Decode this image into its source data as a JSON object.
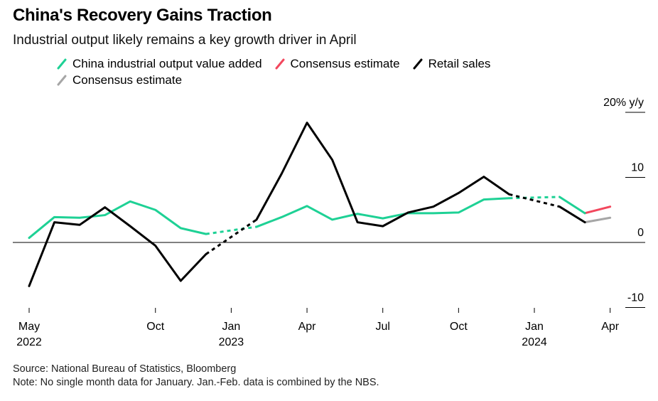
{
  "title": "China's Recovery Gains Traction",
  "subtitle": "Industrial output likely remains a key growth driver in April",
  "footer": {
    "source": "Source: National Bureau of Statistics, Bloomberg",
    "note": "Note: No single month data for January. Jan.-Feb. data is combined by the NBS."
  },
  "colors": {
    "industrial": "#1ed195",
    "industrial_estimate": "#f2475d",
    "retail": "#000000",
    "retail_estimate": "#a6a6a6",
    "axis": "#000000"
  },
  "legend": [
    {
      "label": "China industrial output value added",
      "color": "#1ed195"
    },
    {
      "label": "Consensus estimate",
      "color": "#f2475d"
    },
    {
      "label": "Retail sales",
      "color": "#000000"
    },
    {
      "label": "Consensus estimate",
      "color": "#a6a6a6"
    }
  ],
  "chart_data": {
    "type": "line",
    "ylabel": "20% y/y",
    "ylim": [
      -10,
      20
    ],
    "y_ticks": [
      {
        "value": 20,
        "label": "20% y/y"
      },
      {
        "value": 10,
        "label": "10"
      },
      {
        "value": 0,
        "label": "0"
      },
      {
        "value": -10,
        "label": "-10"
      }
    ],
    "x_ticks": [
      {
        "date": "2022-05",
        "label": "May",
        "year": "2022"
      },
      {
        "date": "2022-10",
        "label": "Oct",
        "year": ""
      },
      {
        "date": "2023-01",
        "label": "Jan",
        "year": "2023"
      },
      {
        "date": "2023-04",
        "label": "Apr",
        "year": ""
      },
      {
        "date": "2023-07",
        "label": "Jul",
        "year": ""
      },
      {
        "date": "2023-10",
        "label": "Oct",
        "year": ""
      },
      {
        "date": "2024-01",
        "label": "Jan",
        "year": "2024"
      },
      {
        "date": "2024-04",
        "label": "Apr",
        "year": ""
      }
    ],
    "series": [
      {
        "name": "China industrial output value added",
        "color": "#1ed195",
        "points": [
          {
            "x": "2022-05",
            "y": 0.7
          },
          {
            "x": "2022-06",
            "y": 3.9
          },
          {
            "x": "2022-07",
            "y": 3.8
          },
          {
            "x": "2022-08",
            "y": 4.2
          },
          {
            "x": "2022-09",
            "y": 6.3
          },
          {
            "x": "2022-10",
            "y": 5.0
          },
          {
            "x": "2022-11",
            "y": 2.2
          },
          {
            "x": "2022-12",
            "y": 1.3
          },
          {
            "x": "2023-02",
            "y": 2.4,
            "dashed": true
          },
          {
            "x": "2023-03",
            "y": 3.9
          },
          {
            "x": "2023-04",
            "y": 5.6
          },
          {
            "x": "2023-05",
            "y": 3.5
          },
          {
            "x": "2023-06",
            "y": 4.4
          },
          {
            "x": "2023-07",
            "y": 3.7
          },
          {
            "x": "2023-08",
            "y": 4.5
          },
          {
            "x": "2023-09",
            "y": 4.5
          },
          {
            "x": "2023-10",
            "y": 4.6
          },
          {
            "x": "2023-11",
            "y": 6.6
          },
          {
            "x": "2023-12",
            "y": 6.8
          },
          {
            "x": "2024-02",
            "y": 7.0,
            "dashed": true
          },
          {
            "x": "2024-03",
            "y": 4.5
          }
        ]
      },
      {
        "name": "Consensus estimate",
        "color": "#f2475d",
        "points": [
          {
            "x": "2024-03",
            "y": 4.5
          },
          {
            "x": "2024-04",
            "y": 5.5
          }
        ]
      },
      {
        "name": "Retail sales",
        "color": "#000000",
        "points": [
          {
            "x": "2022-05",
            "y": -6.7
          },
          {
            "x": "2022-06",
            "y": 3.1
          },
          {
            "x": "2022-07",
            "y": 2.7
          },
          {
            "x": "2022-08",
            "y": 5.4
          },
          {
            "x": "2022-09",
            "y": 2.5
          },
          {
            "x": "2022-10",
            "y": -0.5
          },
          {
            "x": "2022-11",
            "y": -5.9
          },
          {
            "x": "2022-12",
            "y": -1.8
          },
          {
            "x": "2023-02",
            "y": 3.5,
            "dashed": true
          },
          {
            "x": "2023-03",
            "y": 10.6
          },
          {
            "x": "2023-04",
            "y": 18.4
          },
          {
            "x": "2023-05",
            "y": 12.7
          },
          {
            "x": "2023-06",
            "y": 3.1
          },
          {
            "x": "2023-07",
            "y": 2.5
          },
          {
            "x": "2023-08",
            "y": 4.6
          },
          {
            "x": "2023-09",
            "y": 5.5
          },
          {
            "x": "2023-10",
            "y": 7.6
          },
          {
            "x": "2023-11",
            "y": 10.1
          },
          {
            "x": "2023-12",
            "y": 7.4
          },
          {
            "x": "2024-02",
            "y": 5.5,
            "dashed": true
          },
          {
            "x": "2024-03",
            "y": 3.1
          }
        ]
      },
      {
        "name": "Consensus estimate",
        "color": "#a6a6a6",
        "points": [
          {
            "x": "2024-03",
            "y": 3.1
          },
          {
            "x": "2024-04",
            "y": 3.8
          }
        ]
      }
    ]
  }
}
